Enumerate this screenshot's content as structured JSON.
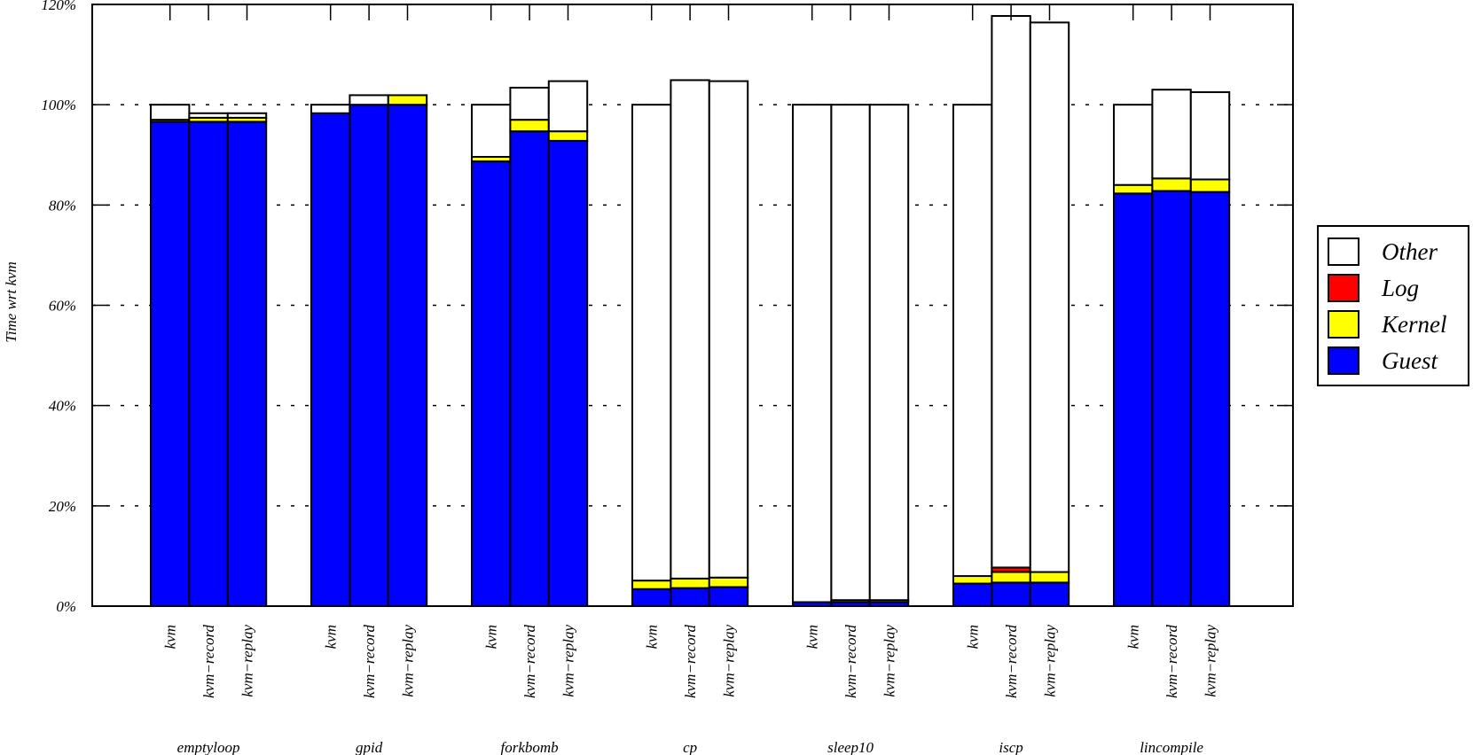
{
  "chart_data": {
    "type": "stacked-bar",
    "ylabel": "Time wrt kvm",
    "categories": [
      "kvm",
      "kvm−record",
      "kvm−replay",
      "kvm",
      "kvm−record",
      "kvm−replay",
      "kvm",
      "kvm−record",
      "kvm−replay",
      "kvm",
      "kvm−record",
      "kvm−replay",
      "kvm",
      "kvm−record",
      "kvm−replay",
      "kvm",
      "kvm−record",
      "kvm−replay",
      "kvm",
      "kvm−record",
      "kvm−replay"
    ],
    "groups": [
      "emptyloop",
      "gpid",
      "forkbomb",
      "cp",
      "sleep10",
      "iscp",
      "lincompile"
    ],
    "series": [
      {
        "name": "Guest",
        "color": "#0000ff",
        "values": [
          96.6,
          96.6,
          96.6,
          98.3,
          100,
          100,
          88.7,
          94.7,
          92.8,
          3.4,
          3.6,
          3.8,
          0.8,
          0.8,
          0.8,
          4.5,
          4.7,
          4.7,
          82.3,
          82.8,
          82.6
        ]
      },
      {
        "name": "Kernel",
        "color": "#ffff00",
        "values": [
          0.4,
          0.8,
          0.8,
          0,
          0,
          1.9,
          0.9,
          2.3,
          1.9,
          1.7,
          1.9,
          1.9,
          0,
          0.4,
          0.4,
          1.5,
          2.1,
          2.1,
          1.7,
          2.5,
          2.5
        ]
      },
      {
        "name": "Log",
        "color": "#ff0000",
        "values": [
          0,
          0,
          0,
          0,
          0,
          0,
          0,
          0,
          0,
          0,
          0,
          0,
          0,
          0,
          0,
          0,
          0.9,
          0,
          0,
          0,
          0
        ]
      },
      {
        "name": "Other",
        "color": "#ffffff",
        "values": [
          3.0,
          0.9,
          0.9,
          1.7,
          1.9,
          0,
          10.4,
          6.4,
          10.0,
          94.9,
          99.4,
          99.0,
          99.2,
          98.8,
          98.8,
          94.0,
          110.0,
          109.6,
          16.0,
          17.7,
          17.4
        ]
      }
    ],
    "ylim": [
      0,
      120
    ],
    "yticks": [
      {
        "value": 0,
        "label": "0%"
      },
      {
        "value": 20,
        "label": "20%"
      },
      {
        "value": 40,
        "label": "40%"
      },
      {
        "value": 60,
        "label": "60%"
      },
      {
        "value": 80,
        "label": "80%"
      },
      {
        "value": 100,
        "label": "100%"
      },
      {
        "value": 120,
        "label": "120%"
      }
    ],
    "grid": true,
    "legend": "right"
  }
}
